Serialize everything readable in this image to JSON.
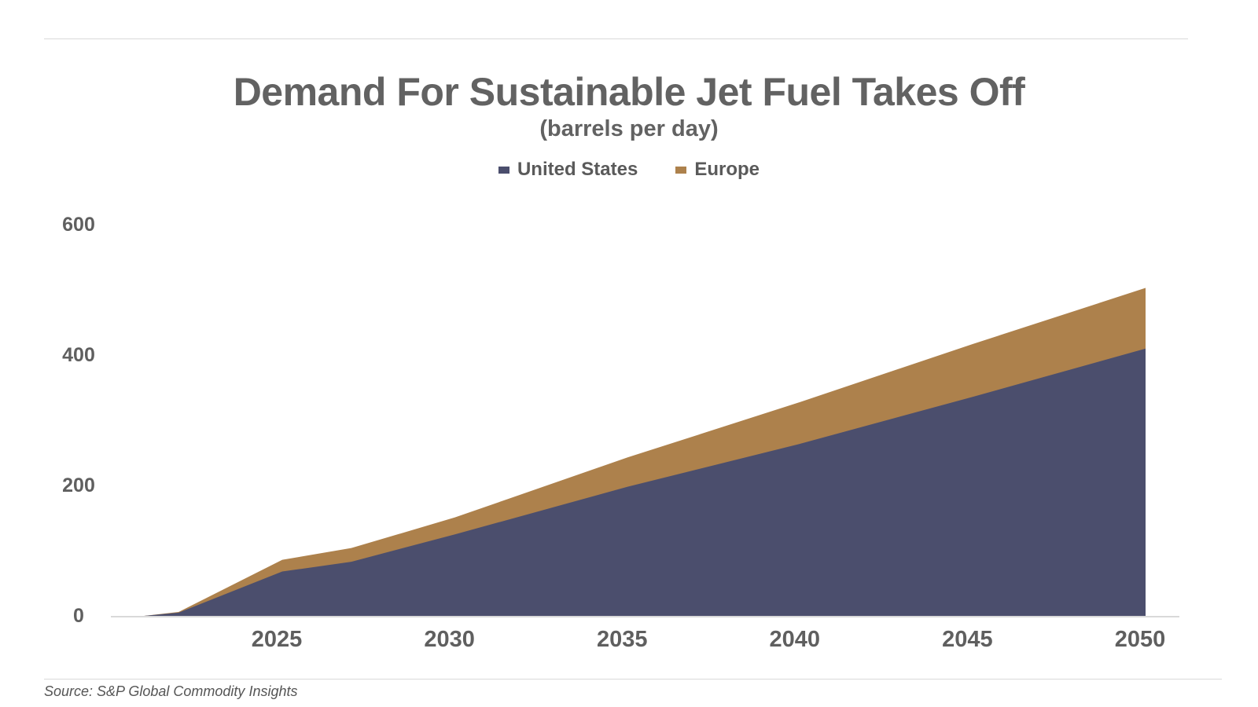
{
  "chart_data": {
    "type": "area",
    "stacked": true,
    "title": "Demand For Sustainable Jet Fuel Takes Off",
    "subtitle": "(barrels per day)",
    "x": [
      2021,
      2022,
      2025,
      2027,
      2030,
      2035,
      2040,
      2045,
      2050
    ],
    "series": [
      {
        "name": "United States",
        "color": "#4b4e6d",
        "values": [
          0,
          5,
          68,
          83,
          125,
          198,
          264,
          336,
          410
        ]
      },
      {
        "name": "Europe",
        "color": "#ad814c",
        "values": [
          0,
          1,
          18,
          21,
          26,
          45,
          64,
          81,
          93
        ]
      }
    ],
    "xticks": [
      "2025",
      "2030",
      "2035",
      "2040",
      "2045",
      "2050"
    ],
    "yticks": [
      "0",
      "200",
      "400",
      "600"
    ],
    "xlim": [
      2021,
      2050
    ],
    "ylim": [
      0,
      600
    ],
    "grid": false,
    "legend_position": "top-center",
    "source": "Source: S&P Global Commodity Insights"
  }
}
